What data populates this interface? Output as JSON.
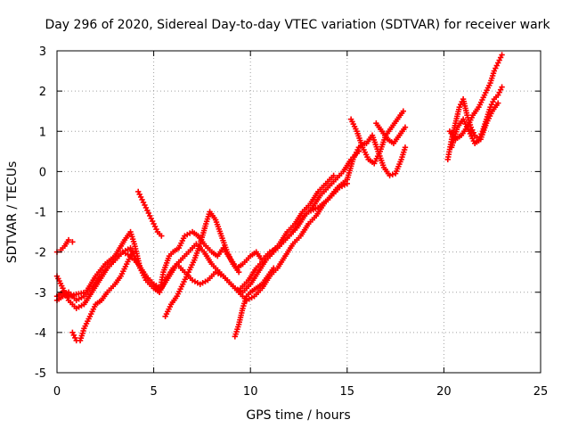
{
  "chart_data": {
    "type": "scatter",
    "title": "Day 296 of 2020, Sidereal Day-to-day VTEC variation (SDTVAR) for receiver wark",
    "xlabel": "GPS time / hours",
    "ylabel": "SDTVAR / TECUs",
    "xlim": [
      0,
      25
    ],
    "ylim": [
      -5,
      3
    ],
    "xticks": [
      "0",
      "5",
      "10",
      "15",
      "20",
      "25"
    ],
    "yticks": [
      "-5",
      "-4",
      "-3",
      "-2",
      "-1",
      "0",
      "1",
      "2",
      "3"
    ],
    "grid": true,
    "marker": "+",
    "color": "#ff0000",
    "series": [
      {
        "x": [
          0.0,
          0.2,
          0.4,
          0.6,
          0.8
        ],
        "y": [
          -2.0,
          -1.95,
          -1.85,
          -1.7,
          -1.75
        ]
      },
      {
        "x": [
          0.0,
          0.3,
          0.6,
          1.0,
          1.5,
          2.0,
          2.5,
          3.0,
          3.5,
          3.8,
          4.0,
          4.3,
          4.6,
          5.0,
          5.3,
          5.5,
          5.8,
          6.0,
          6.3,
          6.6,
          7.0,
          7.3,
          7.6,
          8.0,
          8.3,
          8.6,
          9.0,
          9.3,
          9.6,
          10.0,
          10.3,
          10.6,
          11.0,
          11.4,
          11.8,
          12.2,
          12.6,
          13.0,
          13.5,
          14.0,
          14.5,
          15.0,
          15.3,
          15.6,
          15.9
        ],
        "y": [
          -3.1,
          -3.0,
          -3.1,
          -3.05,
          -3.0,
          -2.6,
          -2.3,
          -2.1,
          -1.7,
          -1.5,
          -1.8,
          -2.4,
          -2.7,
          -2.9,
          -3.0,
          -2.5,
          -2.1,
          -2.0,
          -1.9,
          -1.6,
          -1.5,
          -1.6,
          -1.8,
          -2.0,
          -2.1,
          -1.9,
          -2.2,
          -2.4,
          -2.3,
          -2.1,
          -2.0,
          -2.2,
          -2.0,
          -1.9,
          -1.7,
          -1.5,
          -1.2,
          -1.0,
          -0.9,
          -0.7,
          -0.4,
          -0.2,
          0.3,
          0.6,
          0.7
        ]
      },
      {
        "x": [
          0.0,
          0.3,
          0.6,
          1.0,
          1.4,
          1.8,
          2.2,
          2.6,
          3.0,
          3.4,
          3.8,
          4.0,
          4.3,
          4.6,
          5.0,
          5.3,
          5.6,
          6.0,
          6.4,
          6.8,
          7.2,
          7.6,
          8.0,
          8.4,
          8.8,
          9.2,
          9.6,
          10.0,
          10.4,
          10.8,
          11.2,
          11.6,
          12.0,
          12.4,
          12.8,
          13.2,
          13.6,
          14.0,
          14.4,
          14.8,
          15.2,
          15.6
        ],
        "y": [
          -3.2,
          -3.1,
          -3.0,
          -3.2,
          -3.1,
          -2.9,
          -2.6,
          -2.4,
          -2.2,
          -2.0,
          -1.9,
          -2.1,
          -2.4,
          -2.6,
          -2.8,
          -3.0,
          -2.7,
          -2.4,
          -2.2,
          -2.0,
          -1.8,
          -2.0,
          -2.3,
          -2.5,
          -2.7,
          -2.9,
          -3.0,
          -2.8,
          -2.5,
          -2.2,
          -2.0,
          -1.8,
          -1.6,
          -1.4,
          -1.1,
          -0.9,
          -0.6,
          -0.4,
          -0.2,
          0.0,
          0.3,
          0.5
        ]
      },
      {
        "x": [
          0.0,
          0.3,
          0.6,
          1.0,
          1.4,
          1.8,
          2.2,
          2.6,
          3.0,
          3.4,
          3.8,
          4.2,
          4.6,
          5.0,
          5.4,
          5.8,
          6.2,
          6.6,
          7.0,
          7.4,
          7.8,
          8.2,
          8.6,
          9.0,
          9.4,
          9.8,
          10.2,
          10.6,
          11.0,
          11.4,
          11.8,
          12.2,
          12.6,
          13.0,
          13.4,
          13.8,
          14.2,
          14.6,
          15.0
        ],
        "y": [
          -2.6,
          -2.9,
          -3.2,
          -3.4,
          -3.3,
          -3.0,
          -2.7,
          -2.4,
          -2.2,
          -2.0,
          -2.1,
          -2.3,
          -2.6,
          -2.8,
          -2.9,
          -2.6,
          -2.3,
          -2.5,
          -2.7,
          -2.8,
          -2.7,
          -2.5,
          -2.6,
          -2.8,
          -3.0,
          -3.2,
          -3.1,
          -2.9,
          -2.6,
          -2.4,
          -2.1,
          -1.8,
          -1.6,
          -1.3,
          -1.1,
          -0.8,
          -0.6,
          -0.4,
          -0.3
        ]
      },
      {
        "x": [
          0.8,
          1.0,
          1.2,
          1.4,
          1.7,
          2.0,
          2.3,
          2.6,
          3.0,
          3.3,
          3.6,
          3.9
        ],
        "y": [
          -4.0,
          -4.2,
          -4.2,
          -3.9,
          -3.6,
          -3.3,
          -3.2,
          -3.0,
          -2.8,
          -2.6,
          -2.3,
          -2.0
        ]
      },
      {
        "x": [
          4.2,
          4.4,
          4.6,
          4.8,
          5.0,
          5.2,
          5.4
        ],
        "y": [
          -0.5,
          -0.7,
          -0.9,
          -1.1,
          -1.3,
          -1.5,
          -1.6
        ]
      },
      {
        "x": [
          5.6,
          5.9,
          6.2,
          6.5,
          6.8,
          7.1,
          7.4,
          7.7,
          7.9,
          8.2,
          8.5,
          8.8,
          9.1,
          9.4
        ],
        "y": [
          -3.6,
          -3.3,
          -3.1,
          -2.8,
          -2.5,
          -2.2,
          -1.8,
          -1.3,
          -1.0,
          -1.2,
          -1.6,
          -2.0,
          -2.3,
          -2.5
        ]
      },
      {
        "x": [
          9.2,
          9.4,
          9.6,
          9.8,
          10.0,
          10.3,
          10.6,
          10.9,
          11.2
        ],
        "y": [
          -4.1,
          -3.8,
          -3.4,
          -3.1,
          -3.0,
          -2.9,
          -2.8,
          -2.6,
          -2.4
        ]
      },
      {
        "x": [
          9.5,
          9.9,
          10.3,
          10.7,
          11.1,
          11.5,
          11.9,
          12.3,
          12.7,
          13.1,
          13.5,
          13.9,
          14.3
        ],
        "y": [
          -2.9,
          -2.7,
          -2.4,
          -2.2,
          -2.0,
          -1.8,
          -1.5,
          -1.3,
          -1.0,
          -0.8,
          -0.5,
          -0.3,
          -0.1
        ]
      },
      {
        "x": [
          15.2,
          15.5,
          15.8,
          16.1,
          16.4,
          16.7,
          17.0,
          17.3,
          17.6,
          17.9
        ],
        "y": [
          1.3,
          1.0,
          0.6,
          0.3,
          0.2,
          0.5,
          0.9,
          1.1,
          1.3,
          1.5
        ]
      },
      {
        "x": [
          16.0,
          16.3,
          16.6,
          16.9,
          17.2,
          17.5,
          17.8,
          18.0
        ],
        "y": [
          0.7,
          0.9,
          0.5,
          0.1,
          -0.1,
          -0.05,
          0.3,
          0.6
        ]
      },
      {
        "x": [
          16.5,
          16.8,
          17.1,
          17.4,
          17.7,
          18.0
        ],
        "y": [
          1.2,
          1.0,
          0.8,
          0.7,
          0.9,
          1.1
        ]
      },
      {
        "x": [
          20.2,
          20.4,
          20.6,
          20.8,
          21.0,
          21.2,
          21.4,
          21.6,
          21.8,
          22.0,
          22.2,
          22.4,
          22.6,
          22.8,
          23.0
        ],
        "y": [
          0.3,
          0.8,
          1.2,
          1.6,
          1.8,
          1.4,
          1.1,
          0.9,
          0.8,
          1.0,
          1.3,
          1.6,
          1.8,
          1.9,
          2.1
        ]
      },
      {
        "x": [
          20.3,
          20.6,
          20.9,
          21.2,
          21.5,
          21.8,
          22.1,
          22.4,
          22.6,
          22.8,
          23.0
        ],
        "y": [
          1.0,
          0.8,
          0.9,
          1.1,
          1.4,
          1.6,
          1.9,
          2.2,
          2.5,
          2.7,
          2.9
        ]
      },
      {
        "x": [
          20.4,
          20.7,
          21.0,
          21.3,
          21.6,
          21.9,
          22.2,
          22.5,
          22.8
        ],
        "y": [
          0.6,
          1.1,
          1.3,
          1.0,
          0.7,
          0.8,
          1.2,
          1.5,
          1.7
        ]
      }
    ]
  }
}
